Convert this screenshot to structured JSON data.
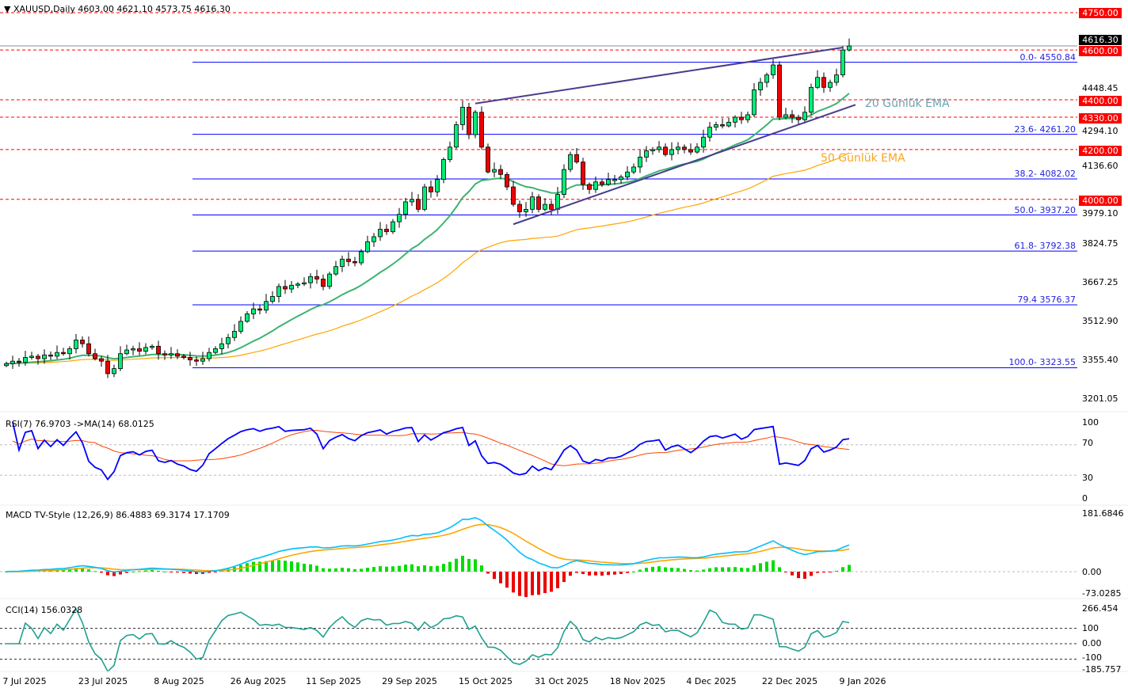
{
  "header": {
    "symbol_line": "XAUUSD,Daily  4603.00 4621.10 4573.75 4616.30"
  },
  "colors": {
    "bull": "#00ee77",
    "bear": "#ee0000",
    "ema20": "#3cb371",
    "ema50": "#ffa500",
    "fib": "#0000ff",
    "level": "#ff0000",
    "trend": "#483d8b",
    "rsi": "#0000ff",
    "rsi_ma": "#ff4500",
    "macd": "#00bfff",
    "signal": "#ffa500",
    "cci": "#20a090"
  },
  "chart_data": {
    "type": "candlestick",
    "title": "XAUUSD,Daily",
    "ylim": [
      3201.05,
      4750
    ],
    "closes": [
      3340,
      3350,
      3345,
      3365,
      3370,
      3360,
      3375,
      3370,
      3385,
      3380,
      3400,
      3435,
      3420,
      3380,
      3360,
      3350,
      3300,
      3320,
      3380,
      3395,
      3400,
      3390,
      3405,
      3410,
      3380,
      3375,
      3380,
      3370,
      3365,
      3355,
      3350,
      3360,
      3385,
      3400,
      3420,
      3445,
      3470,
      3510,
      3540,
      3560,
      3555,
      3590,
      3610,
      3650,
      3640,
      3655,
      3660,
      3665,
      3690,
      3680,
      3650,
      3700,
      3730,
      3760,
      3750,
      3745,
      3790,
      3830,
      3850,
      3880,
      3870,
      3910,
      3940,
      3990,
      4000,
      3960,
      4050,
      4030,
      4080,
      4160,
      4210,
      4300,
      4370,
      4260,
      4350,
      4210,
      4110,
      4120,
      4100,
      4050,
      3980,
      3950,
      3960,
      4010,
      3960,
      3980,
      3960,
      4020,
      4120,
      4180,
      4150,
      4060,
      4040,
      4070,
      4060,
      4080,
      4080,
      4090,
      4110,
      4130,
      4170,
      4195,
      4200,
      4210,
      4180,
      4200,
      4210,
      4200,
      4190,
      4210,
      4250,
      4290,
      4300,
      4295,
      4310,
      4330,
      4320,
      4340,
      4440,
      4470,
      4500,
      4540,
      4330,
      4340,
      4330,
      4320,
      4350,
      4450,
      4490,
      4450,
      4470,
      4500,
      4600,
      4616.3
    ],
    "price_axis": [
      "4448.45",
      "4294.10",
      "4136.60",
      "3979.10",
      "3824.75",
      "3667.25",
      "3512.90",
      "3355.40",
      "3201.05"
    ],
    "levels": [
      {
        "label": "4750.00",
        "value": 4750
      },
      {
        "label": "4600.00",
        "value": 4600
      },
      {
        "label": "4400.00",
        "value": 4400
      },
      {
        "label": "4330.00",
        "value": 4330
      },
      {
        "label": "4200.00",
        "value": 4200
      },
      {
        "label": "4000.00",
        "value": 4000
      }
    ],
    "last_price": {
      "label": "4616.30",
      "value": 4616.3
    },
    "fibonacci": [
      {
        "label": "0.0- 4550.84",
        "value": 4550.84
      },
      {
        "label": "23.6- 4261.20",
        "value": 4261.2
      },
      {
        "label": "38.2- 4082.02",
        "value": 4082.02
      },
      {
        "label": "50.0- 3937.20",
        "value": 3937.2
      },
      {
        "label": "61.8- 3792.38",
        "value": 3792.38
      },
      {
        "label": "79.4 3576.37",
        "value": 3576.37
      },
      {
        "label": "100.0- 3323.55",
        "value": 3323.55
      }
    ],
    "trendlines": [
      {
        "name": "upper",
        "from": {
          "index": 74,
          "price": 4385
        },
        "to": {
          "index": 132,
          "price": 4610
        }
      },
      {
        "name": "lower",
        "from": {
          "index": 80,
          "price": 3900
        },
        "to": {
          "index": 134,
          "price": 4380
        }
      }
    ],
    "annotations": {
      "ema20": "20 Günlük EMA",
      "ema50": "50 Günlük EMA"
    },
    "x_labels": [
      "7 Jul 2025",
      "23 Jul 2025",
      "8 Aug 2025",
      "26 Aug 2025",
      "11 Sep 2025",
      "29 Sep 2025",
      "15 Oct 2025",
      "31 Oct 2025",
      "18 Nov 2025",
      "4 Dec 2025",
      "22 Dec 2025",
      "9 Jan 2026"
    ],
    "indicators": {
      "rsi": {
        "label": "RSI(7) 76.9703  ->MA(14) 68.0125",
        "value": 76.9703,
        "ma": 68.0125,
        "axis": [
          "100",
          "70",
          "30",
          "0"
        ]
      },
      "macd": {
        "label": "MACD TV-Style (12,26,9) 86.4883 69.3174 17.1709",
        "macd": 86.4883,
        "signal": 69.3174,
        "hist": 17.1709,
        "axis": [
          "181.6846",
          "0.00",
          "-73.0285"
        ]
      },
      "cci": {
        "label": "CCI(14) 156.0328",
        "value": 156.0328,
        "axis": [
          "266.454",
          "100",
          "0.00",
          "-100",
          "-185.757"
        ]
      }
    }
  }
}
